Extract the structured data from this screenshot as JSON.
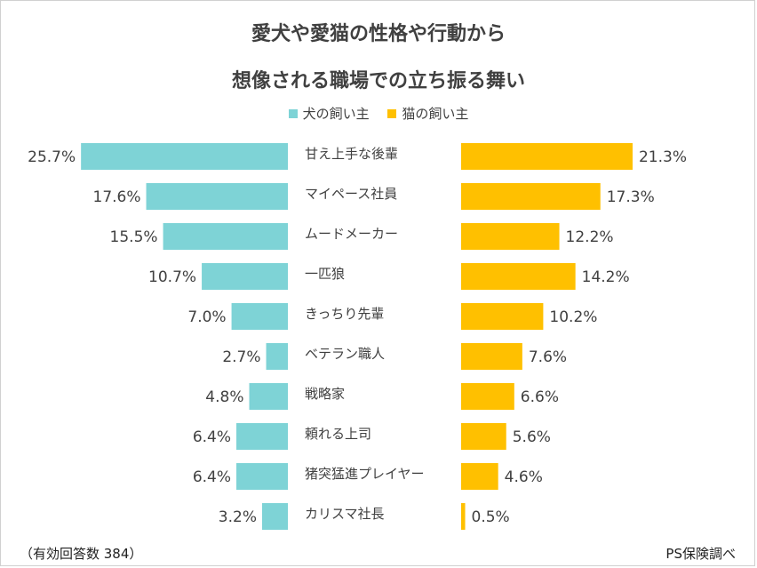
{
  "title_line1": "愛犬や愛猫の性格や行動から",
  "title_line2": "想像される職場での立ち振る舞い",
  "legend": [
    {
      "label": "犬の飼い主",
      "color": "#7ed3d6"
    },
    {
      "label": "猫の飼い主",
      "color": "#ffc000"
    }
  ],
  "chart_data": {
    "type": "bar",
    "orientation": "horizontal-butterfly",
    "categories": [
      "甘え上手な後輩",
      "マイペース社員",
      "ムードメーカー",
      "一匹狼",
      "きっちり先輩",
      "ベテラン職人",
      "戦略家",
      "頼れる上司",
      "猪突猛進プレイヤー",
      "カリスマ社長"
    ],
    "series": [
      {
        "name": "犬の飼い主",
        "values": [
          25.7,
          17.6,
          15.5,
          10.7,
          7.0,
          2.7,
          4.8,
          6.4,
          6.4,
          3.2
        ],
        "color": "#7ed3d6",
        "side": "left"
      },
      {
        "name": "猫の飼い主",
        "values": [
          21.3,
          17.3,
          12.2,
          14.2,
          10.2,
          7.6,
          6.6,
          5.6,
          4.6,
          0.5
        ],
        "color": "#ffc000",
        "side": "right"
      }
    ],
    "unit": "%",
    "legend_position": "top-center"
  },
  "footer": {
    "note": "（有効回答数 384）",
    "source": "PS保険調べ"
  }
}
